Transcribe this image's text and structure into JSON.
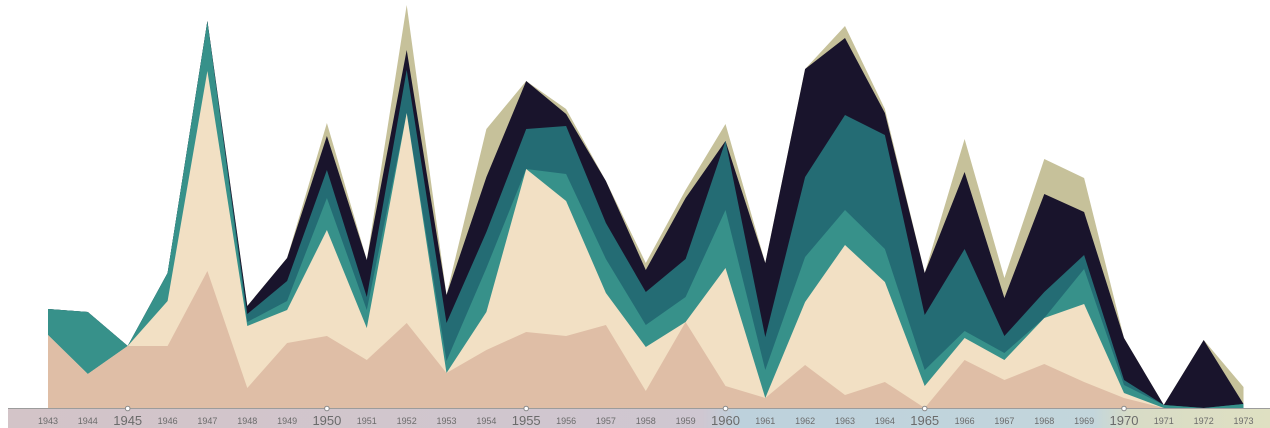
{
  "chart_data": {
    "type": "area",
    "stacked": true,
    "title": "",
    "xlabel": "",
    "ylabel": "",
    "grid": false,
    "legend": "none",
    "x": [
      1943,
      1944,
      1945,
      1946,
      1947,
      1948,
      1949,
      1950,
      1951,
      1952,
      1953,
      1954,
      1955,
      1956,
      1957,
      1958,
      1959,
      1960,
      1961,
      1962,
      1963,
      1964,
      1965,
      1966,
      1967,
      1968,
      1969,
      1970,
      1971,
      1972,
      1973
    ],
    "tick_labels": [
      "1943",
      "1944",
      "1945",
      "1946",
      "1947",
      "1948",
      "1949",
      "1950",
      "1951",
      "1952",
      "1953",
      "1954",
      "1955",
      "1956",
      "1957",
      "1958",
      "1959",
      "1960",
      "1961",
      "1962",
      "1963",
      "1964",
      "1965",
      "1966",
      "1967",
      "1968",
      "1969",
      "1970",
      "1971",
      "1972",
      "1973"
    ],
    "major_ticks": [
      1945,
      1950,
      1955,
      1960,
      1965,
      1970
    ],
    "series": [
      {
        "color": "#dfbea6",
        "values": [
          73,
          34,
          62,
          62,
          137,
          20,
          65,
          72,
          48,
          85,
          35,
          58,
          76,
          72,
          83,
          17,
          86,
          22,
          10,
          43,
          13,
          26,
          0,
          48,
          28,
          44,
          26,
          10,
          0,
          0,
          0
        ]
      },
      {
        "color": "#f2e0c4",
        "values": [
          0,
          0,
          0,
          45,
          200,
          62,
          33,
          106,
          32,
          210,
          0,
          38,
          163,
          135,
          32,
          44,
          0,
          118,
          0,
          63,
          150,
          100,
          22,
          22,
          20,
          46,
          78,
          5,
          0,
          0,
          0
        ]
      },
      {
        "color": "#37918a",
        "values": [
          26,
          62,
          0,
          28,
          49,
          4,
          9,
          32,
          18,
          0,
          12,
          44,
          0,
          27,
          34,
          22,
          25,
          58,
          28,
          45,
          35,
          33,
          16,
          7,
          7,
          0,
          35,
          8,
          3,
          0,
          4
        ]
      },
      {
        "color": "#246c74",
        "values": [
          0,
          0,
          0,
          0,
          1,
          8,
          20,
          28,
          13,
          43,
          38,
          36,
          40,
          48,
          36,
          33,
          38,
          69,
          33,
          80,
          95,
          114,
          55,
          82,
          17,
          26,
          14,
          5,
          0,
          0,
          0
        ]
      },
      {
        "color": "#19142c",
        "values": [
          0,
          0,
          0,
          0,
          0,
          8,
          23,
          34,
          37,
          20,
          28,
          55,
          48,
          12,
          42,
          22,
          61,
          0,
          74,
          108,
          77,
          22,
          42,
          77,
          38,
          98,
          43,
          42,
          0,
          68,
          0
        ]
      },
      {
        "color": "#c6c19a",
        "values": [
          0,
          0,
          0,
          0,
          0,
          0,
          0,
          13,
          0,
          45,
          0,
          48,
          0,
          5,
          0,
          7,
          8,
          17,
          0,
          0,
          12,
          4,
          0,
          33,
          20,
          35,
          34,
          0,
          0,
          0,
          17
        ]
      }
    ]
  }
}
